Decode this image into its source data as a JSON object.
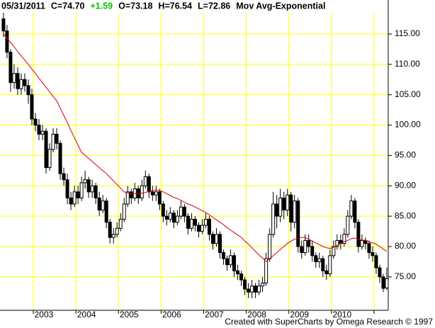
{
  "chart_data": {
    "type": "candlestick",
    "header": [
      {
        "text": "05/31/2011",
        "color": "#000000"
      },
      {
        "text": "C=74.70",
        "color": "#000000"
      },
      {
        "text": "+1.59",
        "color": "#00c000"
      },
      {
        "text": "O=73.18",
        "color": "#000000"
      },
      {
        "text": "H=76.54",
        "color": "#000000"
      },
      {
        "text": "L=72.86",
        "color": "#000000"
      }
    ],
    "footer": "Created with SuperCharts by Omega Research © 1997",
    "grid": true,
    "grid_color": "#ffff00",
    "ylim": [
      69.5,
      120.6
    ],
    "yticks": [
      {
        "value": 75,
        "label": "75.00"
      },
      {
        "value": 80,
        "label": "80.00"
      },
      {
        "value": 85,
        "label": "85.00"
      },
      {
        "value": 90,
        "label": "90.00"
      },
      {
        "value": 95,
        "label": "95.00"
      },
      {
        "value": 100,
        "label": "100.00"
      },
      {
        "value": 105,
        "label": "105.00"
      },
      {
        "value": 110,
        "label": "110.00"
      },
      {
        "value": 115,
        "label": "115.00"
      }
    ],
    "categories": [
      null,
      null,
      null,
      null,
      null,
      null,
      null,
      null,
      "2003",
      null,
      null,
      null,
      null,
      null,
      null,
      null,
      null,
      null,
      null,
      null,
      "2004",
      null,
      null,
      null,
      null,
      null,
      null,
      null,
      null,
      null,
      null,
      null,
      "2005",
      null,
      null,
      null,
      null,
      null,
      null,
      null,
      null,
      null,
      null,
      null,
      "2006",
      null,
      null,
      null,
      null,
      null,
      null,
      null,
      null,
      null,
      null,
      null,
      "2007",
      null,
      null,
      null,
      null,
      null,
      null,
      null,
      null,
      null,
      null,
      null,
      "2008",
      null,
      null,
      null,
      null,
      null,
      null,
      null,
      null,
      null,
      null,
      null,
      "2009",
      null,
      null,
      null,
      null,
      null,
      null,
      null,
      null,
      null,
      null,
      null,
      "2010",
      null,
      null,
      null,
      null,
      null,
      null,
      null,
      null,
      null,
      null,
      null,
      null,
      null,
      null,
      null,
      null
    ],
    "year_start": [
      false,
      false,
      false,
      false,
      false,
      false,
      false,
      false,
      true,
      false,
      false,
      false,
      false,
      false,
      false,
      false,
      false,
      false,
      false,
      false,
      true,
      false,
      false,
      false,
      false,
      false,
      false,
      false,
      false,
      false,
      false,
      false,
      true,
      false,
      false,
      false,
      false,
      false,
      false,
      false,
      false,
      false,
      false,
      false,
      true,
      false,
      false,
      false,
      false,
      false,
      false,
      false,
      false,
      false,
      false,
      false,
      true,
      false,
      false,
      false,
      false,
      false,
      false,
      false,
      false,
      false,
      false,
      false,
      true,
      false,
      false,
      false,
      false,
      false,
      false,
      false,
      false,
      false,
      false,
      false,
      true,
      false,
      false,
      false,
      false,
      false,
      false,
      false,
      false,
      false,
      false,
      false,
      true,
      false,
      false,
      false,
      false,
      false,
      false,
      false,
      false,
      false,
      false,
      false,
      true,
      false,
      false,
      false,
      false
    ],
    "open": [
      117.5,
      115.5,
      112,
      107,
      108.5,
      106,
      107.5,
      106.5,
      105,
      101,
      100,
      98.5,
      99,
      93,
      96,
      98.5,
      97,
      92,
      91,
      88,
      87,
      89,
      88,
      90.5,
      91,
      89,
      90,
      88,
      86,
      87.5,
      84,
      81.5,
      82,
      83,
      84.5,
      87,
      89,
      88,
      89.5,
      88,
      90,
      91.5,
      89,
      88.5,
      89,
      87,
      85,
      84.5,
      85.5,
      84,
      85,
      86.5,
      85,
      83,
      84.5,
      83.5,
      82.5,
      83.5,
      84.5,
      82,
      80.5,
      82,
      79,
      78,
      77,
      78.5,
      76,
      75.5,
      74.5,
      73,
      72.5,
      73.5,
      72.5,
      73.5,
      74,
      78,
      82,
      87,
      85,
      88,
      86,
      88.5,
      84,
      87.5,
      80,
      79,
      81,
      80,
      78.5,
      77.5,
      78,
      76,
      75.5,
      78.5,
      80,
      81,
      80.5,
      82,
      85,
      87.5,
      84,
      80,
      81,
      80.5,
      79,
      78.5,
      76.5,
      75,
      73.18
    ],
    "high": [
      118.5,
      116.5,
      112.5,
      110,
      109.5,
      108.5,
      108.5,
      107.5,
      106,
      102,
      101,
      100,
      99.5,
      97,
      99.5,
      99.5,
      97.5,
      93,
      92,
      89,
      90,
      90,
      91.5,
      92.5,
      91.5,
      91,
      90.5,
      89,
      88.5,
      88,
      84.5,
      83,
      84,
      85.5,
      88,
      90,
      89.5,
      90.5,
      90,
      91,
      92.5,
      92,
      90,
      90,
      89.5,
      87.5,
      86,
      86.5,
      86,
      86,
      87.5,
      87,
      85.5,
      85.5,
      85,
      84,
      84.5,
      85.5,
      85,
      82.5,
      83,
      82.5,
      79.5,
      78.5,
      79.5,
      79,
      77,
      76,
      75,
      74,
      74.5,
      74,
      74.5,
      75,
      79,
      83,
      89,
      88.5,
      89.5,
      89,
      89.5,
      89,
      88.5,
      88,
      81,
      82,
      82,
      81,
      79,
      79,
      78.5,
      77,
      79.5,
      81,
      82,
      82,
      83,
      86,
      88.5,
      88,
      84.5,
      82,
      81.5,
      81,
      80,
      79,
      77,
      75.5,
      76.54
    ],
    "low": [
      114.5,
      111,
      105.5,
      106,
      105,
      105,
      105.5,
      103.5,
      100,
      99,
      97.5,
      97.5,
      92,
      92.5,
      95.5,
      96,
      91,
      90,
      87,
      86,
      86.5,
      87,
      87.5,
      89.5,
      88,
      88,
      87,
      85,
      85.5,
      83,
      80.5,
      80.5,
      81.5,
      82.5,
      84,
      86.5,
      87,
      87.5,
      87,
      87.5,
      89.5,
      88,
      87.5,
      87.5,
      86,
      84,
      83.5,
      84,
      83,
      83.5,
      84.5,
      84,
      82,
      82.5,
      82.5,
      81.5,
      82,
      83,
      81,
      79.5,
      80,
      78,
      77,
      76,
      76.5,
      75,
      74.5,
      73.5,
      72,
      71.5,
      71.5,
      71.5,
      72,
      72.5,
      73.5,
      77.5,
      81.5,
      83,
      84,
      84.5,
      85,
      82.5,
      83,
      79,
      78,
      78.5,
      79,
      77.5,
      76.5,
      76.5,
      75,
      74.5,
      75,
      78,
      79.5,
      79.5,
      80,
      81.5,
      84.5,
      83,
      79,
      79.5,
      79.5,
      78,
      77.5,
      75.5,
      74,
      72.5,
      72.86
    ],
    "close": [
      115.5,
      112,
      107,
      108.5,
      106,
      107.5,
      106.5,
      105,
      101,
      100,
      98.5,
      99,
      93,
      96,
      98.5,
      97,
      92,
      91,
      88,
      87,
      89,
      88,
      90.5,
      91,
      89,
      90,
      88,
      86,
      87.5,
      84,
      81.5,
      82,
      83,
      84.5,
      87,
      89,
      88,
      89.5,
      88,
      90,
      91.5,
      89,
      88.5,
      89,
      87,
      85,
      84.5,
      85.5,
      84,
      85,
      86.5,
      85,
      83,
      84.5,
      83.5,
      82.5,
      83.5,
      84.5,
      82,
      80.5,
      82,
      79,
      78,
      77,
      78.5,
      76,
      75.5,
      74.5,
      73,
      72.5,
      73.5,
      72.5,
      73.5,
      74,
      78,
      82,
      87,
      85,
      88,
      86,
      88.5,
      84,
      87.5,
      80,
      79,
      81,
      80,
      78.5,
      77.5,
      78,
      76,
      75.5,
      78.5,
      80,
      81,
      80.5,
      82,
      85,
      87.5,
      84,
      80,
      81,
      80.5,
      79,
      78.5,
      76.5,
      75,
      73.11,
      74.7
    ],
    "moving_average": {
      "label": "Mov Avg-Exponential",
      "color": "#d40000",
      "values": [
        115,
        114.3,
        113.6,
        112.9,
        112.1,
        111.4,
        110.7,
        110,
        109.2,
        108.5,
        107.7,
        107,
        106.2,
        105.5,
        104.7,
        104,
        102.8,
        101.6,
        100.4,
        99.1,
        97.9,
        96.7,
        95.5,
        95,
        94.5,
        94,
        93.5,
        93,
        92.5,
        92,
        91.4,
        90.8,
        90.2,
        89.6,
        89,
        88.8,
        88.7,
        88.7,
        88.7,
        88.8,
        88.9,
        89.1,
        89.2,
        89.3,
        89.2,
        89,
        88.7,
        88.4,
        88.1,
        87.9,
        87.6,
        87.3,
        87,
        86.8,
        86.5,
        86.2,
        85.9,
        85.6,
        85.2,
        84.8,
        84.4,
        84,
        83.6,
        83.1,
        82.7,
        82.3,
        81.9,
        81.5,
        80.9,
        80.4,
        79.8,
        79.2,
        78.6,
        78.1,
        77.5,
        78,
        78.5,
        79,
        79.5,
        80,
        80.5,
        80.9,
        81.2,
        81.4,
        81.5,
        81.5,
        81.2,
        80.9,
        80.6,
        80.3,
        80,
        79.8,
        79.7,
        79.9,
        80.2,
        80.5,
        80.8,
        81,
        81.3,
        81.4,
        81.2,
        81.1,
        81,
        80.8,
        80.6,
        80.4,
        80,
        79.6,
        79.2
      ]
    }
  }
}
